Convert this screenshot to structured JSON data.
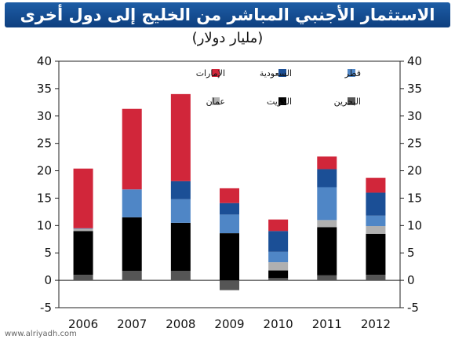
{
  "title": "الاستثمار الأجنبي المباشر من الخليج إلى دول أخرى",
  "subtitle": "(مليار دولار)",
  "watermark": "www.alriyadh.com",
  "chart_data": {
    "type": "bar",
    "stacked": true,
    "categories": [
      "2006",
      "2007",
      "2008",
      "2009",
      "2010",
      "2011",
      "2012"
    ],
    "ylim": [
      -5,
      40
    ],
    "yticks": [
      -5,
      0,
      5,
      10,
      15,
      20,
      25,
      30,
      35,
      40
    ],
    "grid": false,
    "legend_position": "top",
    "series": [
      {
        "name": "البحرين",
        "color": "#555555",
        "values": [
          1.0,
          1.7,
          1.7,
          -1.8,
          0.4,
          0.9,
          1.0
        ]
      },
      {
        "name": "الكويت",
        "color": "#000000",
        "values": [
          8.0,
          9.8,
          8.8,
          8.6,
          1.4,
          8.8,
          7.5
        ]
      },
      {
        "name": "عمان",
        "color": "#b0b0b0",
        "values": [
          0.4,
          0.0,
          0.0,
          0.0,
          1.5,
          1.3,
          1.4
        ]
      },
      {
        "name": "قطر",
        "color": "#4f86c6",
        "values": [
          0.1,
          5.1,
          4.3,
          3.4,
          1.9,
          6.0,
          1.9
        ]
      },
      {
        "name": "السعودية",
        "color": "#1b4f96",
        "values": [
          0.0,
          0.0,
          3.3,
          2.1,
          3.8,
          3.3,
          4.2
        ]
      },
      {
        "name": "الإمارات",
        "color": "#d1263a",
        "values": [
          10.9,
          14.7,
          15.9,
          2.7,
          2.1,
          2.3,
          2.7
        ]
      }
    ]
  }
}
